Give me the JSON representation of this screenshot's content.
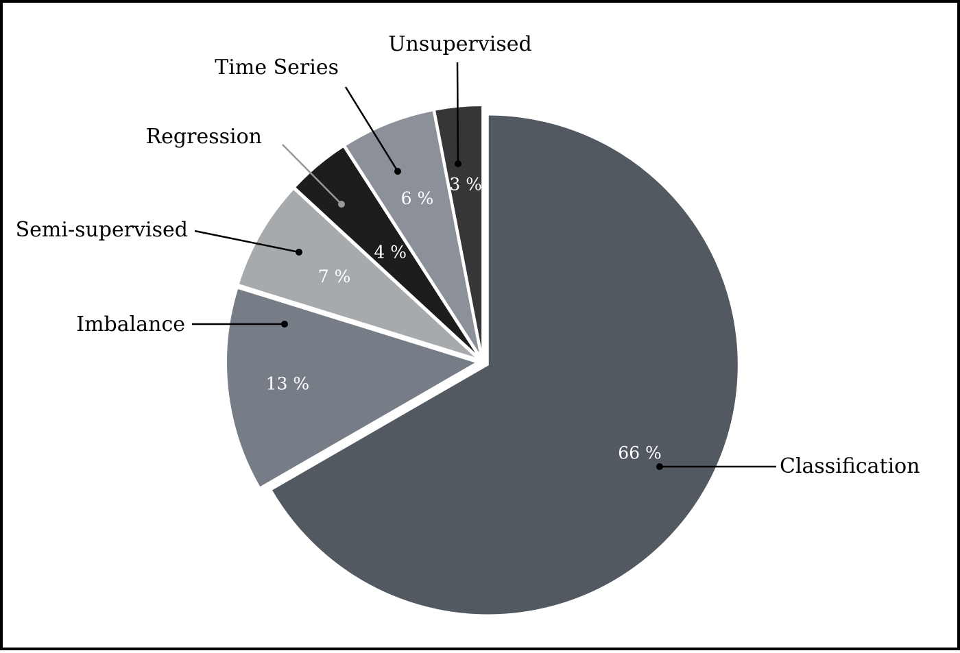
{
  "chart_data": {
    "type": "pie",
    "categories": [
      "Classification",
      "Imbalance",
      "Semi-supervised",
      "Regression",
      "Time Series",
      "Unsupervised"
    ],
    "values": [
      66,
      13,
      7,
      4,
      6,
      3
    ],
    "value_labels": [
      "66 %",
      "13 %",
      "7 %",
      "4 %",
      "6 %",
      "3 %"
    ],
    "colors": [
      "#525961",
      "#777d87",
      "#a7aaad",
      "#1d1d1d",
      "#8c9099",
      "#363638"
    ],
    "exploded": true,
    "start_angle_deg": 0,
    "direction": "clockwise"
  }
}
